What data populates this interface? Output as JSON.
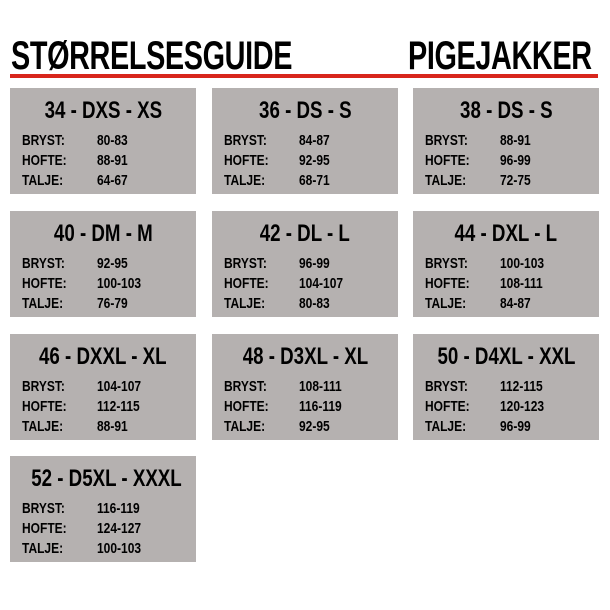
{
  "header": {
    "title_left": "STØRRELSESGUIDE",
    "title_right": "PIGEJAKKER",
    "accent_color": "#d8261c"
  },
  "labels": {
    "chest": "BRYST:",
    "hip": "HOFTE:",
    "waist": "TALJE:"
  },
  "sizes": [
    {
      "size": "34 - DXS - XS",
      "chest": "80-83",
      "hip": "88-91",
      "waist": "64-67"
    },
    {
      "size": "36 - DS - S",
      "chest": "84-87",
      "hip": "92-95",
      "waist": "68-71"
    },
    {
      "size": "38 - DS - S",
      "chest": "88-91",
      "hip": "96-99",
      "waist": "72-75"
    },
    {
      "size": "40 - DM - M",
      "chest": "92-95",
      "hip": "100-103",
      "waist": "76-79"
    },
    {
      "size": "42 - DL - L",
      "chest": "96-99",
      "hip": "104-107",
      "waist": "80-83"
    },
    {
      "size": "44 - DXL - L",
      "chest": "100-103",
      "hip": "108-111",
      "waist": "84-87"
    },
    {
      "size": "46 - DXXL - XL",
      "chest": "104-107",
      "hip": "112-115",
      "waist": "88-91"
    },
    {
      "size": "48 - D3XL - XL",
      "chest": "108-111",
      "hip": "116-119",
      "waist": "92-95"
    },
    {
      "size": "50 - D4XL - XXL",
      "chest": "112-115",
      "hip": "120-123",
      "waist": "96-99"
    },
    {
      "size": "52 - D5XL - XXXL",
      "chest": "116-119",
      "hip": "124-127",
      "waist": "100-103"
    }
  ]
}
